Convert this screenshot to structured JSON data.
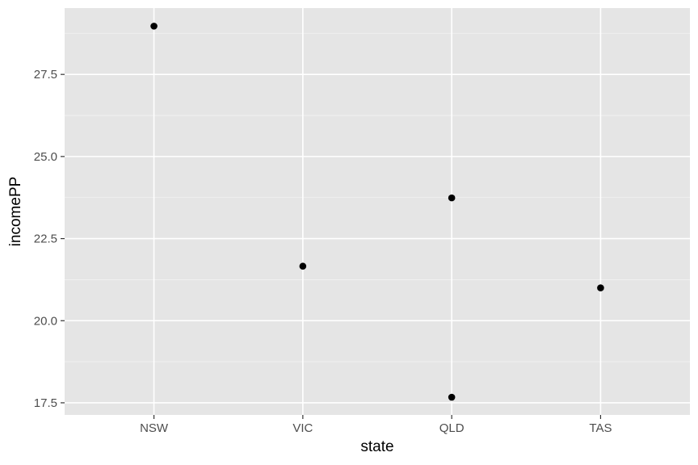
{
  "chart_data": {
    "type": "scatter",
    "title": "",
    "xlabel": "state",
    "ylabel": "incomePP",
    "categories": [
      "NSW",
      "VIC",
      "QLD",
      "TAS"
    ],
    "x_range": [
      0.4,
      4.6
    ],
    "ylim": [
      17.13,
      29.52
    ],
    "yticks": [
      17.5,
      20.0,
      22.5,
      25.0,
      27.5
    ],
    "ytick_labels": [
      "17.5",
      "20.0",
      "22.5",
      "25.0",
      "27.5"
    ],
    "points": [
      {
        "x": "NSW",
        "y": 28.97
      },
      {
        "x": "VIC",
        "y": 21.66
      },
      {
        "x": "QLD",
        "y": 23.74
      },
      {
        "x": "QLD",
        "y": 17.67
      },
      {
        "x": "TAS",
        "y": 21.0
      }
    ],
    "grid": true,
    "legend": "none",
    "colors": {
      "panel_background": "#e5e5e5",
      "grid_major": "#ffffff",
      "grid_minor": "#f2f2f2",
      "point": "#000000",
      "tick_text": "#4d4d4d",
      "axis_title": "#000000"
    }
  }
}
